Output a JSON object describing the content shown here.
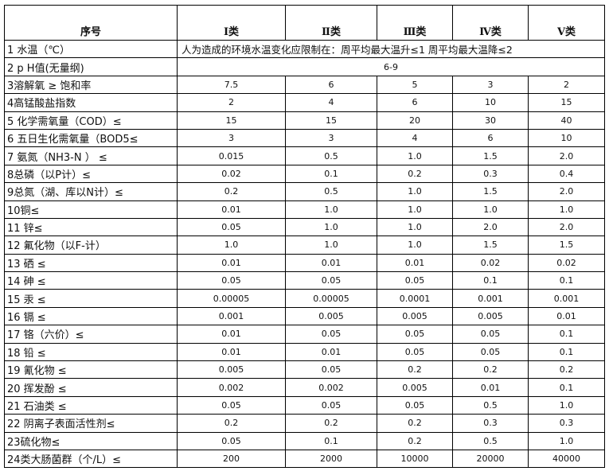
{
  "headers": [
    "序号",
    "Ⅰ类",
    "Ⅱ类",
    "Ⅲ类",
    "Ⅳ类",
    "Ⅴ类"
  ],
  "rows": [
    {
      "label": "1 水温（℃）",
      "span": "人为造成的环境水温变化应限制在：周平均最大温升≤1 周平均最大温降≤2"
    },
    {
      "label": "2 p H值(无量纲)",
      "span": "6-9"
    },
    {
      "label": "3溶解氧 ≥ 饱和率",
      "values": [
        "7.5",
        "6",
        "5",
        "3",
        "2"
      ]
    },
    {
      "label": "4高锰酸盐指数",
      "values": [
        "2",
        "4",
        "6",
        "10",
        "15"
      ]
    },
    {
      "label": "5 化学需氧量（COD）≤",
      "values": [
        "15",
        "15",
        "20",
        "30",
        "40"
      ]
    },
    {
      "label": "6 五日生化需氧量（BOD5≤",
      "values": [
        "3",
        "3",
        "4",
        "6",
        "10"
      ]
    },
    {
      "label": "7 氨氮（NH3-N ） ≤",
      "values": [
        "0.015",
        "0.5",
        "1.0",
        "1.5",
        "2.0"
      ]
    },
    {
      "label": "8总磷（以P计）≤",
      "values": [
        "0.02",
        "0.1",
        "0.2",
        "0.3",
        "0.4"
      ]
    },
    {
      "label": "9总氮（湖、库以N计）≤",
      "values": [
        "0.2",
        "0.5",
        "1.0",
        "1.5",
        "2.0"
      ]
    },
    {
      "label": "10铜≤",
      "values": [
        "0.01",
        "1.0",
        "1.0",
        "1.0",
        "1.0"
      ]
    },
    {
      "label": "11 锌≤",
      "values": [
        "0.05",
        "1.0",
        "1.0",
        "2.0",
        "2.0"
      ]
    },
    {
      "label": "12 氟化物（以F-计）",
      "values": [
        "1.0",
        "1.0",
        "1.0",
        "1.5",
        "1.5"
      ]
    },
    {
      "label": "13 硒 ≤",
      "values": [
        "0.01",
        "0.01",
        "0.01",
        "0.02",
        "0.02"
      ]
    },
    {
      "label": "14 砷 ≤",
      "values": [
        "0.05",
        "0.05",
        "0.05",
        "0.1",
        "0.1"
      ]
    },
    {
      "label": "15 汞 ≤",
      "values": [
        "0.00005",
        "0.00005",
        "0.0001",
        "0.001",
        "0.001"
      ]
    },
    {
      "label": "16 镉 ≤",
      "values": [
        "0.001",
        "0.005",
        "0.005",
        "0.005",
        "0.01"
      ]
    },
    {
      "label": "17 铬（六价）≤",
      "values": [
        "0.01",
        "0.05",
        "0.05",
        "0.05",
        "0.1"
      ]
    },
    {
      "label": "18 铅 ≤",
      "values": [
        "0.01",
        "0.01",
        "0.05",
        "0.05",
        "0.1"
      ]
    },
    {
      "label": "19 氰化物 ≤",
      "values": [
        "0.005",
        "0.05",
        "0.2",
        "0.2",
        "0.2"
      ]
    },
    {
      "label": "20 挥发酚 ≤",
      "values": [
        "0.002",
        "0.002",
        "0.005",
        "0.01",
        "0.1"
      ]
    },
    {
      "label": "21 石油类 ≤",
      "values": [
        "0.05",
        "0.05",
        "0.05",
        "0.5",
        "1.0"
      ]
    },
    {
      "label": "22 阴离子表面活性剂≤",
      "values": [
        "0.2",
        "0.2",
        "0.2",
        "0.3",
        "0.3"
      ]
    },
    {
      "label": "23硫化物≤",
      "values": [
        "0.05",
        "0.1",
        "0.2",
        "0.5",
        "1.0"
      ]
    },
    {
      "label": "24类大肠菌群（个/L）≤",
      "values": [
        "200",
        "2000",
        "10000",
        "20000",
        "40000"
      ]
    }
  ]
}
